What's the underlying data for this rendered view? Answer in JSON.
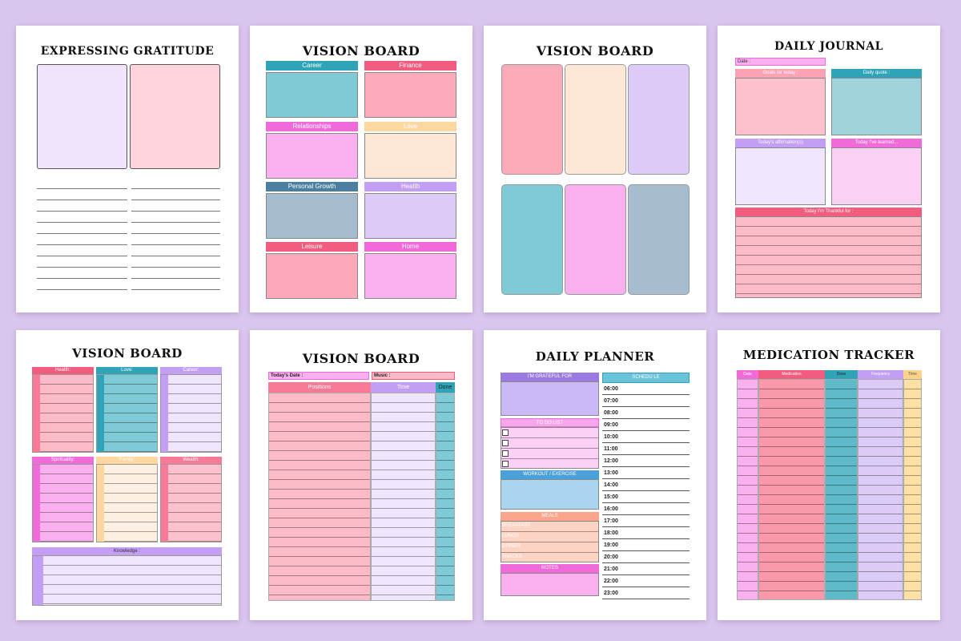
{
  "pages": {
    "gratitude": {
      "title": "EXPRESSING GRATITUDE"
    },
    "vision1": {
      "title": "VISION BOARD",
      "sections": [
        "Career",
        "Finance",
        "Relationships",
        "Love",
        "Personal Growth",
        "Health",
        "Leisure",
        "Home"
      ]
    },
    "vision2": {
      "title": "VISION BOARD"
    },
    "journal": {
      "title": "DAILY JOURNAL",
      "date_label": "Date :",
      "goals": "Goals for today :",
      "quote": "Daily quote :",
      "affirmation": "Today's affirmation(s)",
      "learned": "Today I've learned...",
      "thankful": "Today I'm Thankful for :"
    },
    "vision3": {
      "title": "VISION BOARD",
      "sections": [
        "Health:",
        "Love:",
        "Career:",
        "Spirituality:",
        "Family:",
        "Wealth:",
        "Knowledge :"
      ]
    },
    "vision4": {
      "title": "VISION BOARD",
      "date_label": "Today's Date :",
      "music_label": "Music :",
      "columns": [
        "Positions",
        "Time",
        "Done"
      ]
    },
    "planner": {
      "title": "DAILY PLANNER",
      "grateful": "I'M GRATEFUL FOR",
      "schedule": "SCHEDU LE",
      "todo": "TO DO LIST",
      "workout": "WORKOUT / EXERCISE",
      "meals": "MEALS",
      "meal_items": [
        "BREAKFAST",
        "LUNCH",
        "DINNER",
        "SNACKS"
      ],
      "notes": "NOTES",
      "times": [
        "06:00",
        "07:00",
        "08:00",
        "09:00",
        "10:00",
        "11:00",
        "12:00",
        "13:00",
        "14:00",
        "15:00",
        "16:00",
        "17:00",
        "18:00",
        "19:00",
        "20:00",
        "21:00",
        "22:00",
        "23:00"
      ]
    },
    "medication": {
      "title": "MEDICATION TRACKER",
      "columns": [
        "Date",
        "Medication",
        "Dose",
        "Frequency",
        "Time"
      ]
    }
  },
  "colors": {
    "background": "#d9c6ec",
    "teal": "#2fa3b8",
    "pink": "#f25c7e",
    "magenta": "#f06ad9",
    "peach": "#fdd7a0",
    "slate": "#4a7fa0",
    "lavender": "#c39ef5"
  }
}
